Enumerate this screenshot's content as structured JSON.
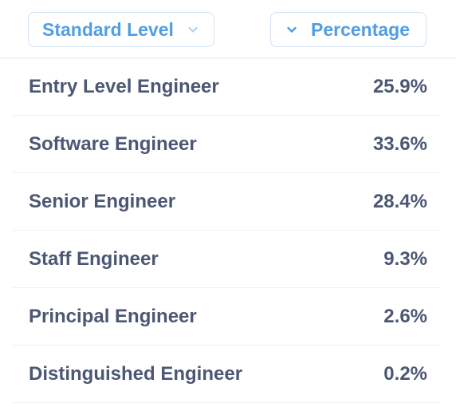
{
  "header": {
    "level_column_label": "Standard Level",
    "percentage_column_label": "Percentage"
  },
  "rows": [
    {
      "level": "Entry Level Engineer",
      "percentage": "25.9%"
    },
    {
      "level": "Software Engineer",
      "percentage": "33.6%"
    },
    {
      "level": "Senior Engineer",
      "percentage": "28.4%"
    },
    {
      "level": "Staff Engineer",
      "percentage": "9.3%"
    },
    {
      "level": "Principal Engineer",
      "percentage": "2.6%"
    },
    {
      "level": "Distinguished Engineer",
      "percentage": "0.2%"
    }
  ],
  "colors": {
    "accent": "#509ee3",
    "text": "#4c5773",
    "border": "#d4e1ef"
  },
  "icons": {
    "level_column": "chevron-down-icon",
    "percentage_column": "chevron-down-icon"
  }
}
